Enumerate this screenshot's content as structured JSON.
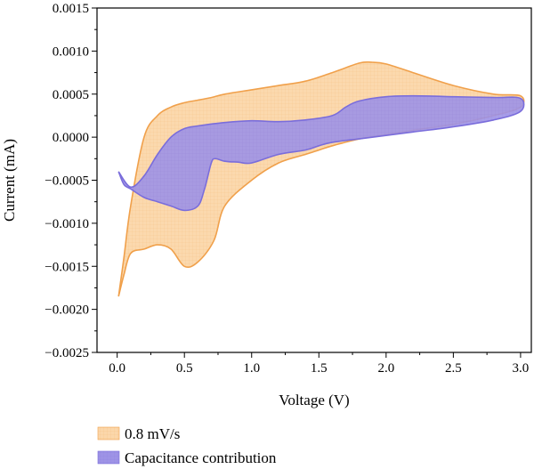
{
  "chart_data": {
    "type": "area",
    "xlabel": "Voltage (V)",
    "ylabel": "Current (mA)",
    "xlim": [
      -0.15,
      3.08
    ],
    "ylim": [
      -0.0025,
      0.0015
    ],
    "x_ticks": [
      0.0,
      0.5,
      1.0,
      1.5,
      2.0,
      2.5,
      3.0
    ],
    "x_tick_labels": [
      "0.0",
      "0.5",
      "1.0",
      "1.5",
      "2.0",
      "2.5",
      "3.0"
    ],
    "y_ticks": [
      -0.0025,
      -0.002,
      -0.0015,
      -0.001,
      -0.0005,
      0.0,
      0.0005,
      0.001,
      0.0015
    ],
    "y_tick_labels": [
      "−0.0025",
      "−0.0020",
      "−0.0015",
      "−0.0010",
      "−0.0005",
      "0.0000",
      "0.0005",
      "0.0010",
      "0.0015"
    ],
    "grid": false,
    "legend_position": "bottom-left",
    "series": [
      {
        "name": "0.8 mV/s",
        "fill_color": "#fbd7aa",
        "edge_color": "#f0a04b",
        "x": [
          0.01,
          0.05,
          0.1,
          0.2,
          0.3,
          0.4,
          0.5,
          0.6,
          0.7,
          0.8,
          1.0,
          1.2,
          1.4,
          1.6,
          1.8,
          1.9,
          2.0,
          2.2,
          2.5,
          2.8,
          3.0,
          3.0,
          2.8,
          2.5,
          2.2,
          2.0,
          1.8,
          1.6,
          1.5,
          1.4,
          1.2,
          1.0,
          0.8,
          0.72,
          0.6,
          0.5,
          0.4,
          0.3,
          0.2,
          0.1,
          0.05,
          0.01
        ],
        "y": [
          -0.00185,
          -0.0014,
          -0.0008,
          0.0,
          0.00025,
          0.00035,
          0.0004,
          0.00043,
          0.00046,
          0.0005,
          0.00055,
          0.0006,
          0.00065,
          0.00075,
          0.00086,
          0.00087,
          0.00085,
          0.00075,
          0.0006,
          0.0005,
          0.00048,
          0.00035,
          0.00025,
          0.00015,
          8e-05,
          3e-05,
          -2e-05,
          -0.0001,
          -0.00015,
          -0.0002,
          -0.0003,
          -0.0005,
          -0.0008,
          -0.0012,
          -0.00145,
          -0.0015,
          -0.0013,
          -0.00125,
          -0.0013,
          -0.00135,
          -0.0016,
          -0.00185
        ]
      },
      {
        "name": "Capacitance contribution",
        "fill_color": "#9e93e6",
        "edge_color": "#7a6ddb",
        "x": [
          0.01,
          0.1,
          0.2,
          0.3,
          0.4,
          0.5,
          0.6,
          0.8,
          1.0,
          1.2,
          1.4,
          1.6,
          1.7,
          1.8,
          2.0,
          2.2,
          2.5,
          2.8,
          3.0,
          3.0,
          2.8,
          2.5,
          2.2,
          2.0,
          1.8,
          1.6,
          1.5,
          1.4,
          1.2,
          1.0,
          0.9,
          0.8,
          0.73,
          0.7,
          0.65,
          0.6,
          0.5,
          0.4,
          0.3,
          0.2,
          0.1,
          0.05,
          0.01
        ],
        "y": [
          -0.0004,
          -0.00058,
          -0.00045,
          -0.0002,
          0.0,
          0.0001,
          0.00013,
          0.00017,
          0.00019,
          0.00018,
          0.0002,
          0.00025,
          0.00035,
          0.00042,
          0.00047,
          0.00048,
          0.00047,
          0.00046,
          0.00045,
          0.0003,
          0.0002,
          0.00012,
          6e-05,
          2e-05,
          -2e-05,
          -6e-05,
          -0.0001,
          -0.00015,
          -0.0002,
          -0.0003,
          -0.00029,
          -0.00028,
          -0.00025,
          -0.0003,
          -0.0006,
          -0.0008,
          -0.00085,
          -0.0008,
          -0.00075,
          -0.0007,
          -0.0006,
          -0.00055,
          -0.0004
        ]
      }
    ]
  }
}
